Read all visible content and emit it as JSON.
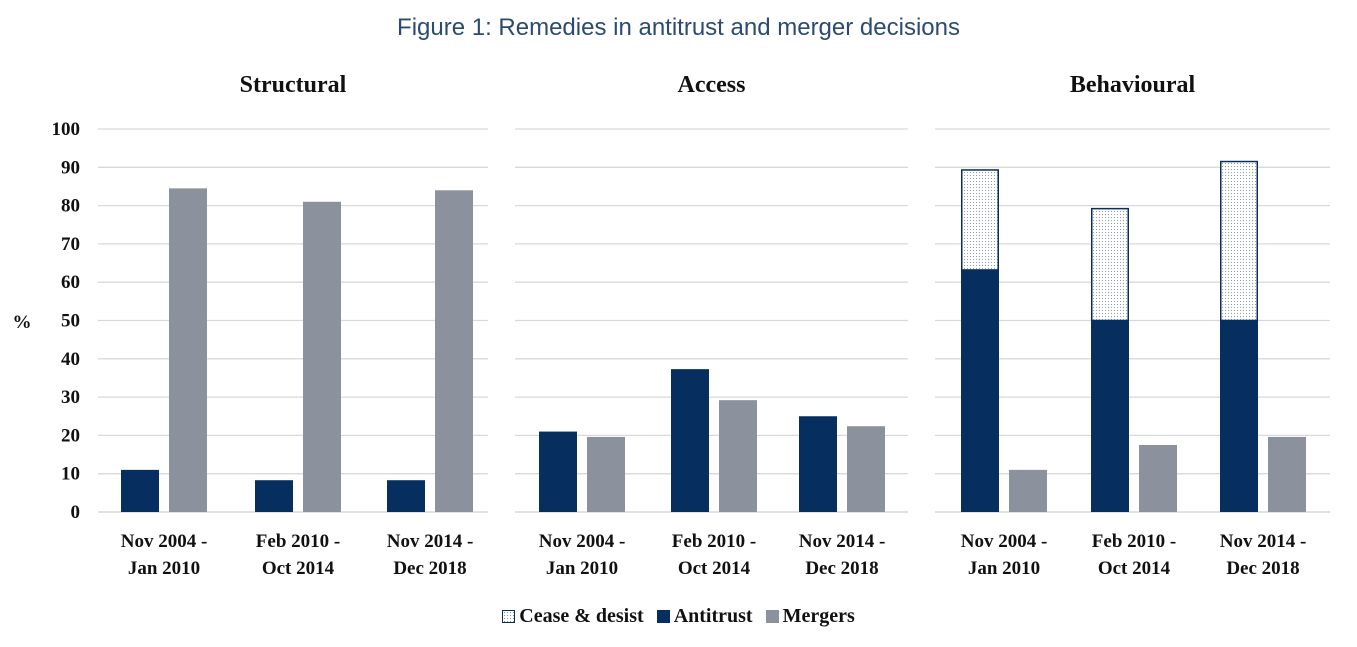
{
  "figure_title": "Figure 1: Remedies in antitrust and merger decisions",
  "y_axis_label": "%",
  "legend": {
    "cease": "Cease & desist",
    "antitrust": "Antitrust",
    "mergers": "Mergers"
  },
  "colors": {
    "antitrust": "#062e5f",
    "mergers": "#8c929d",
    "cease_border": "#0a2d5c",
    "title": "#2c4a72"
  },
  "chart_data": [
    {
      "type": "bar",
      "title": "Structural",
      "ylabel": "%",
      "ylim": [
        0,
        100
      ],
      "yticks": [
        0,
        10,
        20,
        30,
        40,
        50,
        60,
        70,
        80,
        90,
        100
      ],
      "categories": [
        [
          "Nov 2004 -",
          "Jan 2010"
        ],
        [
          "Feb 2010 -",
          "Oct 2014"
        ],
        [
          "Nov 2014 -",
          "Dec 2018"
        ]
      ],
      "series": [
        {
          "name": "Antitrust",
          "values": [
            11,
            8.3,
            8.3
          ]
        },
        {
          "name": "Mergers",
          "values": [
            84.5,
            81,
            84
          ]
        }
      ]
    },
    {
      "type": "bar",
      "title": "Access",
      "ylim": [
        0,
        100
      ],
      "categories": [
        [
          "Nov 2004 -",
          "Jan 2010"
        ],
        [
          "Feb 2010 -",
          "Oct 2014"
        ],
        [
          "Nov 2014 -",
          "Dec 2018"
        ]
      ],
      "series": [
        {
          "name": "Antitrust",
          "values": [
            21,
            37.3,
            25
          ]
        },
        {
          "name": "Mergers",
          "values": [
            19.6,
            29.2,
            22.4
          ]
        }
      ]
    },
    {
      "type": "bar",
      "title": "Behavioural",
      "ylim": [
        0,
        100
      ],
      "stacked_antitrust": true,
      "categories": [
        [
          "Nov 2004 -",
          "Jan 2010"
        ],
        [
          "Feb 2010 -",
          "Oct 2014"
        ],
        [
          "Nov 2014 -",
          "Dec 2018"
        ]
      ],
      "series": [
        {
          "name": "Antitrust",
          "values": [
            63.2,
            50,
            50
          ]
        },
        {
          "name": "Cease & desist",
          "values": [
            26.3,
            29.4,
            41.7
          ]
        },
        {
          "name": "Mergers",
          "values": [
            11,
            17.5,
            19.6
          ]
        }
      ]
    }
  ]
}
